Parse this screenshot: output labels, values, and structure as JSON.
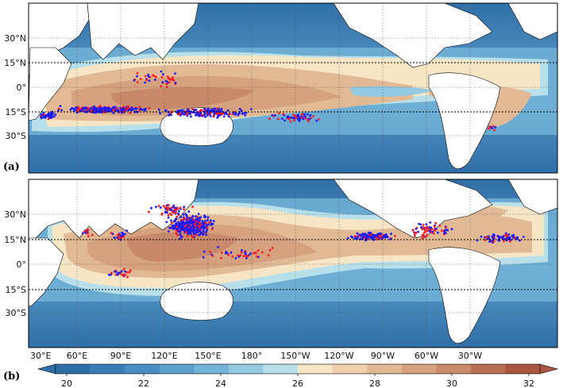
{
  "panels": [
    {
      "tag": "(a)"
    },
    {
      "tag": "(b)"
    }
  ],
  "lat_labels": [
    "30°N",
    "15°N",
    "0°",
    "15°S",
    "30°S"
  ],
  "lon_labels": [
    "30°E",
    "60°E",
    "90°E",
    "120°E",
    "150°E",
    "180°",
    "150°W",
    "120°W",
    "90°W",
    "60°W",
    "30°W"
  ],
  "colorbar": {
    "ticks": [
      "20",
      "22",
      "24",
      "26",
      "28",
      "30",
      "32"
    ],
    "levels": [
      "#2f6fa8",
      "#3a7db6",
      "#4a8dc2",
      "#5c9fcd",
      "#74b4d8",
      "#93cae2",
      "#b8e0eb",
      "#f6e6c6",
      "#eed0ad",
      "#e2b995",
      "#d5a17e",
      "#c8896a",
      "#b86f54",
      "#a8563f"
    ]
  },
  "colors": {
    "ocean_base": "#3f82bd",
    "land": "#ffffff",
    "dot_red": "#ff1a1a",
    "dot_blue": "#1a1aff"
  }
}
